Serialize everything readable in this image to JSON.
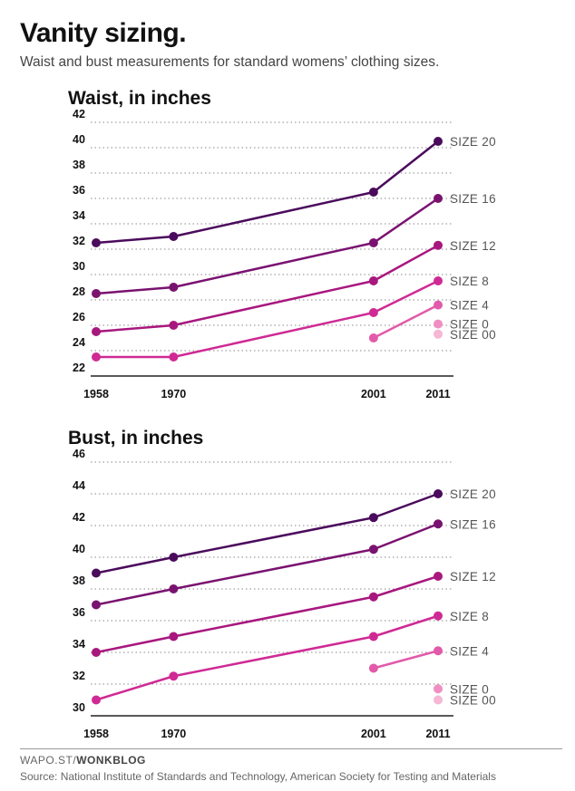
{
  "header": {
    "title": "Vanity sizing.",
    "subtitle": "Waist and bust measurements for standard womens’ clothing sizes."
  },
  "footer": {
    "credit_prefix": "WAPO.ST/",
    "credit_brand": "WONKBLOG",
    "source": "Source: National Institute of Standards and Technology, American Society for Testing and Materials"
  },
  "chart_data": [
    {
      "type": "line",
      "id": "waist",
      "title": "Waist, in inches",
      "x": [
        1958,
        1970,
        2001,
        2011
      ],
      "x_ticks": [
        "1958",
        "1970",
        "2001",
        "2011"
      ],
      "ylim": [
        22,
        42
      ],
      "y_ticks": [
        22,
        24,
        26,
        28,
        30,
        32,
        34,
        36,
        38,
        40,
        42
      ],
      "grid": true,
      "series": [
        {
          "name": "SIZE 20",
          "color": "#4b0b5c",
          "points": [
            [
              1958,
              32.5
            ],
            [
              1970,
              33
            ],
            [
              2001,
              36.5
            ],
            [
              2011,
              40.5
            ]
          ]
        },
        {
          "name": "SIZE 16",
          "color": "#7a1270",
          "points": [
            [
              1958,
              28.5
            ],
            [
              1970,
              29
            ],
            [
              2001,
              32.5
            ],
            [
              2011,
              36
            ]
          ]
        },
        {
          "name": "SIZE 12",
          "color": "#a8177e",
          "points": [
            [
              1958,
              25.5
            ],
            [
              1970,
              26
            ],
            [
              2001,
              29.5
            ],
            [
              2011,
              32.3
            ]
          ]
        },
        {
          "name": "SIZE 8",
          "color": "#cf2a94",
          "points": [
            [
              1958,
              23.5
            ],
            [
              1970,
              23.5
            ],
            [
              2001,
              27
            ],
            [
              2011,
              29.5
            ]
          ]
        },
        {
          "name": "SIZE 4",
          "color": "#e25aaa",
          "points": [
            [
              2001,
              25
            ],
            [
              2011,
              27.6
            ]
          ]
        },
        {
          "name": "SIZE 0",
          "color": "#f08ec2",
          "points": [
            [
              2011,
              26.1
            ]
          ]
        },
        {
          "name": "SIZE 00",
          "color": "#f6b6d6",
          "points": [
            [
              2011,
              25.3
            ]
          ]
        }
      ]
    },
    {
      "type": "line",
      "id": "bust",
      "title": "Bust, in inches",
      "x": [
        1958,
        1970,
        2001,
        2011
      ],
      "x_ticks": [
        "1958",
        "1970",
        "2001",
        "2011"
      ],
      "ylim": [
        30,
        46
      ],
      "y_ticks": [
        30,
        32,
        34,
        36,
        38,
        40,
        42,
        44,
        46
      ],
      "grid": true,
      "series": [
        {
          "name": "SIZE 20",
          "color": "#4b0b5c",
          "points": [
            [
              1958,
              39
            ],
            [
              1970,
              40
            ],
            [
              2001,
              42.5
            ],
            [
              2011,
              44
            ]
          ]
        },
        {
          "name": "SIZE 16",
          "color": "#7a1270",
          "points": [
            [
              1958,
              37
            ],
            [
              1970,
              38
            ],
            [
              2001,
              40.5
            ],
            [
              2011,
              42.1
            ]
          ]
        },
        {
          "name": "SIZE 12",
          "color": "#a8177e",
          "points": [
            [
              1958,
              34
            ],
            [
              1970,
              35
            ],
            [
              2001,
              37.5
            ],
            [
              2011,
              38.8
            ]
          ]
        },
        {
          "name": "SIZE 8",
          "color": "#cf2a94",
          "points": [
            [
              1958,
              31
            ],
            [
              1970,
              32.5
            ],
            [
              2001,
              35
            ],
            [
              2011,
              36.3
            ]
          ]
        },
        {
          "name": "SIZE 4",
          "color": "#e25aaa",
          "points": [
            [
              2001,
              33
            ],
            [
              2011,
              34.1
            ]
          ]
        },
        {
          "name": "SIZE 0",
          "color": "#f08ec2",
          "points": [
            [
              2011,
              31.7
            ]
          ]
        },
        {
          "name": "SIZE 00",
          "color": "#f6b6d6",
          "points": [
            [
              2011,
              31
            ]
          ]
        }
      ]
    }
  ]
}
